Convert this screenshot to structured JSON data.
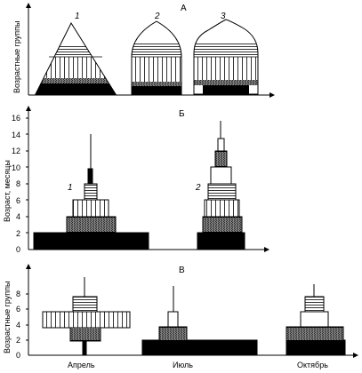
{
  "panel_a": {
    "label": "А",
    "ylabel": "Возрастные группы",
    "shape_labels": [
      "1",
      "2",
      "3"
    ]
  },
  "panel_b": {
    "label": "Б",
    "ylabel": "Возраст, месяцы",
    "yticks": [
      "0",
      "2",
      "4",
      "6",
      "8",
      "10",
      "12",
      "14",
      "16"
    ],
    "pyramid_labels": [
      "1",
      "2"
    ]
  },
  "panel_c": {
    "label": "В",
    "ylabel": "Возрастные группы",
    "yticks": [
      "0",
      "2",
      "4",
      "6",
      "8"
    ],
    "xcategories": [
      "Апрель",
      "Июль",
      "Октябрь"
    ]
  },
  "colors": {
    "ink": "#000000",
    "paper": "#ffffff"
  }
}
